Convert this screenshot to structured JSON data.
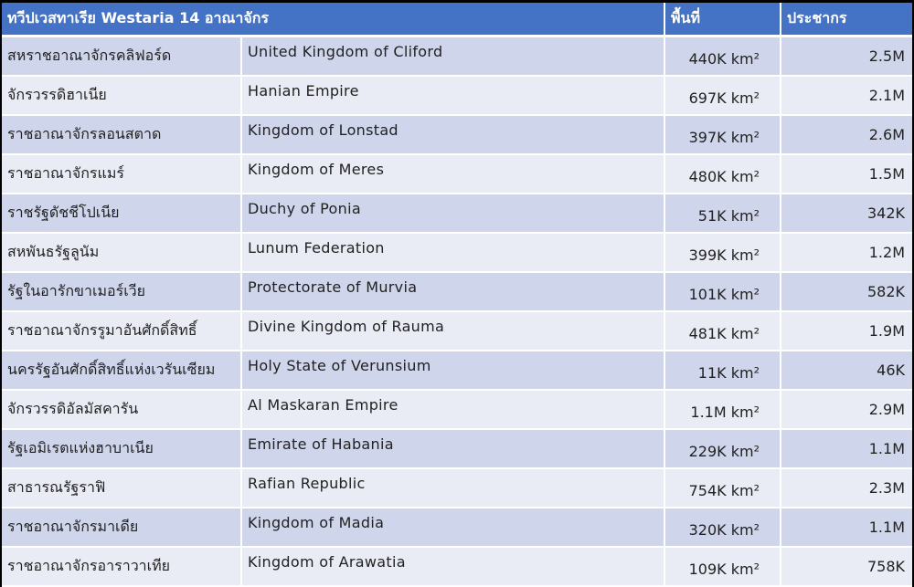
{
  "header": {
    "title": "ทวีปเวสทาเรีย Westaria 14 อาณาจักร",
    "area_label": "พื้นที่",
    "population_label": "ประชากร"
  },
  "rows": [
    {
      "thai": "สหราชอาณาจักรคลิฟอร์ด",
      "english": "United Kingdom of Cliford",
      "area": "440K km²",
      "population": "2.5M"
    },
    {
      "thai": "จักรวรรดิฮาเนีย",
      "english": "Hanian Empire",
      "area": "697K km²",
      "population": "2.1M"
    },
    {
      "thai": "ราชอาณาจักรลอนสตาด",
      "english": "Kingdom of Lonstad",
      "area": "397K km²",
      "population": "2.6M"
    },
    {
      "thai": "ราชอาณาจักรแมร์",
      "english": "Kingdom of Meres",
      "area": "480K km²",
      "population": "1.5M"
    },
    {
      "thai": "ราชรัฐดัชชีโปเนีย",
      "english": "Duchy of Ponia",
      "area": "51K km²",
      "population": "342K"
    },
    {
      "thai": "สหพันธรัฐลูนัม",
      "english": "Lunum Federation",
      "area": "399K km²",
      "population": "1.2M"
    },
    {
      "thai": "รัฐในอารักขาเมอร์เวีย",
      "english": "Protectorate of Murvia",
      "area": "101K km²",
      "population": "582K"
    },
    {
      "thai": "ราชอาณาจักรรูมาอันศักดิ์สิทธิ์",
      "english": "Divine Kingdom of Rauma",
      "area": "481K km²",
      "population": "1.9M"
    },
    {
      "thai": "นครรัฐอันศักดิ์สิทธิ์แห่งเวรันเซียม",
      "english": "Holy State of Verunsium",
      "area": "11K km²",
      "population": "46K"
    },
    {
      "thai": "จักรวรรดิอัลมัสคารัน",
      "english": "Al Maskaran Empire",
      "area": "1.1M km²",
      "population": "2.9M"
    },
    {
      "thai": "รัฐเอมิเรตแห่งฮาบาเนีย",
      "english": "Emirate of Habania",
      "area": "229K km²",
      "population": "1.1M"
    },
    {
      "thai": "สาธารณรัฐราฟิ",
      "english": "Rafian Republic",
      "area": "754K km²",
      "population": "2.3M"
    },
    {
      "thai": "ราชอาณาจักรมาเดีย",
      "english": "Kingdom of Madia",
      "area": "320K km²",
      "population": "1.1M"
    },
    {
      "thai": "ราชอาณาจักรอาราวาเทีย",
      "english": "Kingdom of Arawatia",
      "area": "109K km²",
      "population": "758K"
    }
  ],
  "colors": {
    "header_bg": "#4472c4",
    "row_dark": "#cfd5ea",
    "row_light": "#e9ebf5",
    "divider": "#ffffff"
  }
}
